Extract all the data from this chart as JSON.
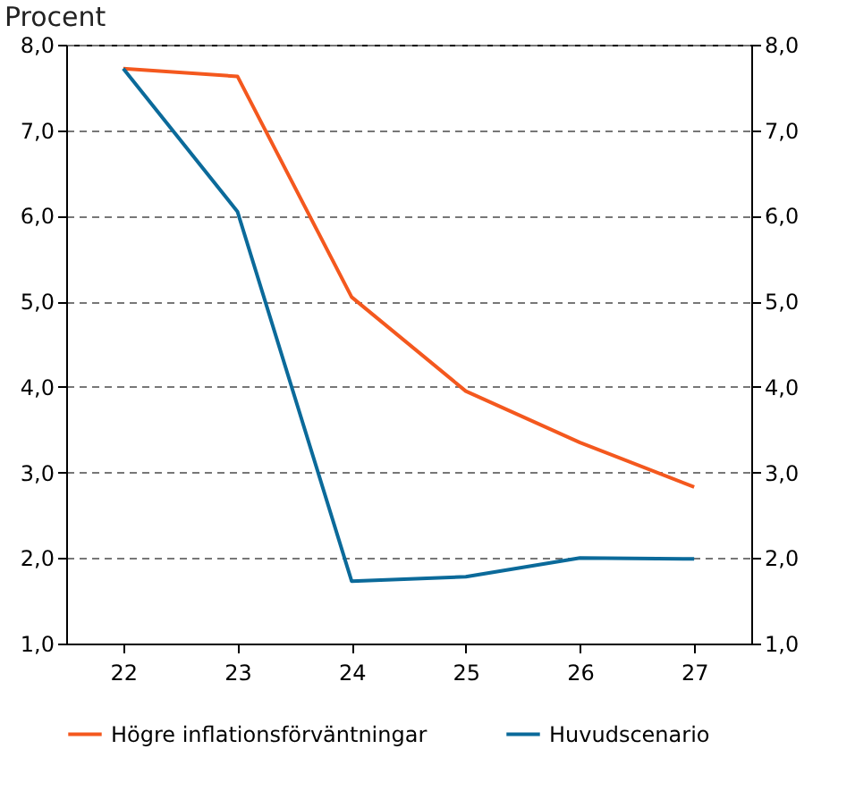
{
  "chart_data": {
    "type": "line",
    "ylabel": "Procent",
    "categories": [
      "22",
      "23",
      "24",
      "25",
      "26",
      "27"
    ],
    "series": [
      {
        "name": "Högre inflationsförväntningar",
        "color": "#f4581e",
        "values": [
          7.72,
          7.63,
          5.05,
          3.95,
          3.35,
          2.83
        ]
      },
      {
        "name": "Huvudscenario",
        "color": "#0b6a9a",
        "values": [
          7.72,
          6.05,
          1.73,
          1.78,
          2.0,
          1.99
        ]
      }
    ],
    "ylim": [
      1,
      8
    ],
    "yticks": [
      {
        "value": 1,
        "label": "1,0"
      },
      {
        "value": 2,
        "label": "2,0"
      },
      {
        "value": 3,
        "label": "3,0"
      },
      {
        "value": 4,
        "label": "4,0"
      },
      {
        "value": 5,
        "label": "5,0"
      },
      {
        "value": 6,
        "label": "6,0"
      },
      {
        "value": 7,
        "label": "7,0"
      },
      {
        "value": 8,
        "label": "8,0"
      }
    ],
    "y2lim": [
      1,
      8
    ],
    "y2ticks": [
      {
        "value": 1,
        "label": "1,0"
      },
      {
        "value": 2,
        "label": "2,0"
      },
      {
        "value": 3,
        "label": "3,0"
      },
      {
        "value": 4,
        "label": "4,0"
      },
      {
        "value": 5,
        "label": "5,0"
      },
      {
        "value": 6,
        "label": "6,0"
      },
      {
        "value": 7,
        "label": "7,0"
      },
      {
        "value": 8,
        "label": "8,0"
      }
    ],
    "grid": "y",
    "legend": "bottom",
    "marker": "none",
    "line_style": "solid"
  }
}
